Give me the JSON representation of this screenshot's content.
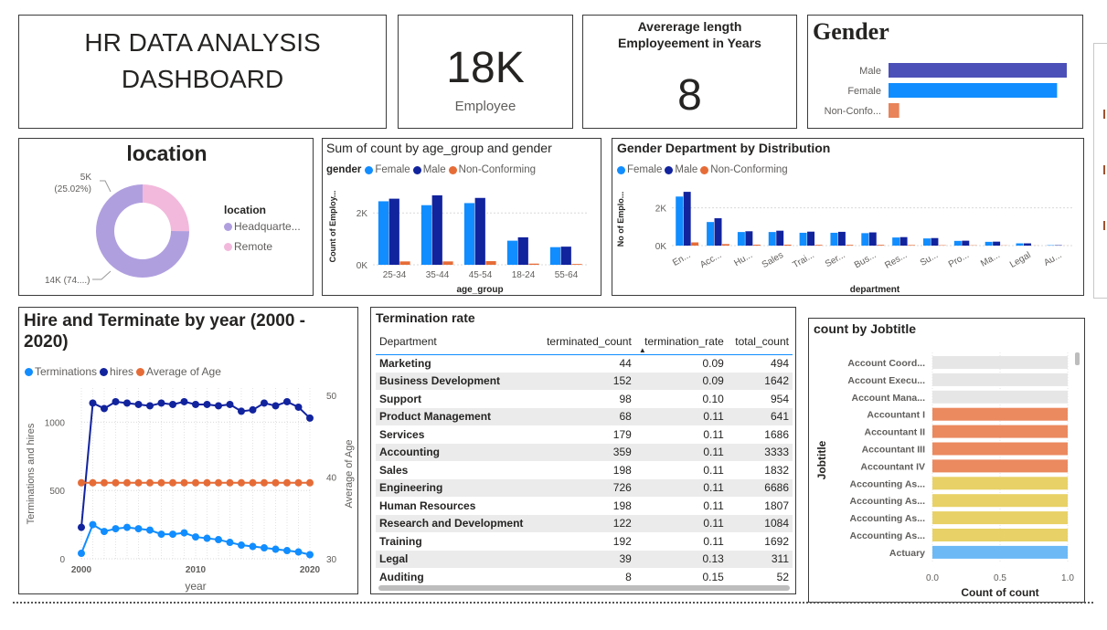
{
  "title_card": {
    "line1": "HR DATA ANALYSIS",
    "line2": "DASHBOARD"
  },
  "employee_card": {
    "value": "18K",
    "label": "Employee"
  },
  "avg_card": {
    "title_line1": "Avererage length",
    "title_line2": "Employeement in Years",
    "value": "8"
  },
  "gender_card": {
    "title": "Gender",
    "chart_data": {
      "type": "bar",
      "orientation": "horizontal",
      "categories": [
        "Male",
        "Female",
        "Non-Confo..."
      ],
      "values": [
        9200,
        8700,
        550
      ],
      "xlim": [
        0,
        9200
      ],
      "colors": [
        "#4b50b8",
        "#118dff",
        "#e8835a"
      ]
    }
  },
  "location_card": {
    "title": "location",
    "legend_title": "location",
    "legend": [
      "Headquarte...",
      "Remote"
    ],
    "label_remote_value": "5K",
    "label_remote_pct": "(25.02%)",
    "label_hq": "14K (74....)",
    "chart_data": {
      "type": "pie",
      "donut": true,
      "categories": [
        "Headquarters",
        "Remote"
      ],
      "values": [
        74.98,
        25.02
      ],
      "colors": [
        "#b09fdf",
        "#f2b9dc"
      ]
    }
  },
  "age_card": {
    "title": "Sum of count by age_group and gender",
    "legend_title": "gender",
    "legend": [
      "Female",
      "Male",
      "Non-Conforming"
    ],
    "ylabel": "Count of Employ...",
    "xlabel": "age_group",
    "ytick_labels": [
      "0K",
      "2K"
    ],
    "chart_data": {
      "type": "bar",
      "categories": [
        "25-34",
        "35-44",
        "45-54",
        "18-24",
        "55-64"
      ],
      "series": [
        {
          "name": "Female",
          "values": [
            2450,
            2300,
            2380,
            930,
            680
          ]
        },
        {
          "name": "Male",
          "values": [
            2550,
            2680,
            2580,
            1060,
            700
          ]
        },
        {
          "name": "Non-Conforming",
          "values": [
            130,
            130,
            140,
            45,
            30
          ]
        }
      ],
      "ylim": [
        0,
        3100
      ],
      "colors": [
        "#118dff",
        "#12239e",
        "#e66c37"
      ]
    }
  },
  "dept_card": {
    "title": "Gender Department by Distribution",
    "legend": [
      "Female",
      "Male",
      "Non-Conforming"
    ],
    "ylabel": "No of Emplo...",
    "xlabel": "department",
    "ytick_labels": [
      "0K",
      "2K"
    ],
    "chart_data": {
      "type": "bar",
      "categories": [
        "En...",
        "Acc...",
        "Hu...",
        "Sales",
        "Trai...",
        "Ser...",
        "Bus...",
        "Res...",
        "Su...",
        "Pro...",
        "Ma...",
        "Legal",
        "Au..."
      ],
      "series": [
        {
          "name": "Female",
          "values": [
            2600,
            1250,
            720,
            720,
            680,
            680,
            660,
            430,
            380,
            250,
            200,
            120,
            20
          ]
        },
        {
          "name": "Male",
          "values": [
            2850,
            1450,
            760,
            790,
            740,
            730,
            700,
            450,
            400,
            260,
            210,
            120,
            20
          ]
        },
        {
          "name": "Non-Conforming",
          "values": [
            170,
            80,
            50,
            50,
            40,
            40,
            40,
            30,
            20,
            15,
            10,
            5,
            2
          ]
        }
      ],
      "ylim": [
        0,
        3000
      ],
      "colors": [
        "#118dff",
        "#12239e",
        "#e66c37"
      ]
    }
  },
  "hire_card": {
    "title_line1": "Hire and Terminate by year (2000 -",
    "title_line2": "2020)",
    "legend": [
      "Terminations",
      "hires",
      "Average of Age"
    ],
    "ylabel_left": "Terminations and hires",
    "ylabel_right": "Average of Age",
    "xlabel": "year",
    "yticks_left": [
      "0",
      "500",
      "1000"
    ],
    "yticks_right": [
      "30",
      "40",
      "50"
    ],
    "xticks": [
      "2000",
      "2010",
      "2020"
    ],
    "chart_data": {
      "type": "line",
      "x": [
        2000,
        2001,
        2002,
        2003,
        2004,
        2005,
        2006,
        2007,
        2008,
        2009,
        2010,
        2011,
        2012,
        2013,
        2014,
        2015,
        2016,
        2017,
        2018,
        2019,
        2020
      ],
      "series": [
        {
          "name": "Terminations",
          "axis": "left",
          "values": [
            40,
            250,
            200,
            220,
            230,
            220,
            210,
            180,
            180,
            190,
            160,
            150,
            140,
            120,
            100,
            90,
            80,
            70,
            60,
            50,
            30
          ]
        },
        {
          "name": "hires",
          "axis": "left",
          "values": [
            230,
            1140,
            1100,
            1150,
            1140,
            1130,
            1120,
            1140,
            1130,
            1150,
            1130,
            1130,
            1120,
            1130,
            1080,
            1090,
            1140,
            1120,
            1150,
            1110,
            1030
          ]
        },
        {
          "name": "Average of Age",
          "axis": "right",
          "values": [
            39.3,
            39.3,
            39.3,
            39.3,
            39.3,
            39.3,
            39.3,
            39.3,
            39.3,
            39.3,
            39.3,
            39.3,
            39.3,
            39.3,
            39.3,
            39.3,
            39.3,
            39.3,
            39.3,
            39.3,
            39.3
          ]
        }
      ],
      "ylim_left": [
        0,
        1250
      ],
      "ylim_right": [
        30,
        50
      ],
      "colors": [
        "#118dff",
        "#12239e",
        "#e66c37"
      ]
    }
  },
  "term_card": {
    "title": "Termination rate",
    "columns": [
      "Department",
      "terminated_count",
      "termination_rate",
      "total_count"
    ],
    "rows": [
      [
        "Marketing",
        "44",
        "0.09",
        "494"
      ],
      [
        "Business Development",
        "152",
        "0.09",
        "1642"
      ],
      [
        "Support",
        "98",
        "0.10",
        "954"
      ],
      [
        "Product Management",
        "68",
        "0.11",
        "641"
      ],
      [
        "Services",
        "179",
        "0.11",
        "1686"
      ],
      [
        "Accounting",
        "359",
        "0.11",
        "3333"
      ],
      [
        "Sales",
        "198",
        "0.11",
        "1832"
      ],
      [
        "Engineering",
        "726",
        "0.11",
        "6686"
      ],
      [
        "Human Resources",
        "198",
        "0.11",
        "1807"
      ],
      [
        "Research and Development",
        "122",
        "0.11",
        "1084"
      ],
      [
        "Training",
        "192",
        "0.11",
        "1692"
      ],
      [
        "Legal",
        "39",
        "0.13",
        "311"
      ],
      [
        "Auditing",
        "8",
        "0.15",
        "52"
      ]
    ]
  },
  "job_card": {
    "title": "count by Jobtitle",
    "ylabel": "Jobtitle",
    "xlabel": "Count of count",
    "xticks": [
      "0.0",
      "0.5",
      "1.0"
    ],
    "chart_data": {
      "type": "bar",
      "orientation": "horizontal",
      "categories": [
        "Account Coord...",
        "Account Execu...",
        "Account Mana...",
        "Accountant I",
        "Accountant II",
        "Accountant III",
        "Accountant IV",
        "Accounting As...",
        "Accounting As...",
        "Accounting As...",
        "Accounting As...",
        "Actuary"
      ],
      "values": [
        1,
        1,
        1,
        1,
        1,
        1,
        1,
        1,
        1,
        1,
        1,
        1
      ],
      "xlim": [
        0,
        1
      ],
      "colors": [
        "#e6e6e6",
        "#e6e6e6",
        "#e6e6e6",
        "#eb895f",
        "#eb895f",
        "#eb895f",
        "#eb895f",
        "#e8d166",
        "#e8d166",
        "#e8d166",
        "#e8d166",
        "#6cb9f5"
      ]
    }
  }
}
